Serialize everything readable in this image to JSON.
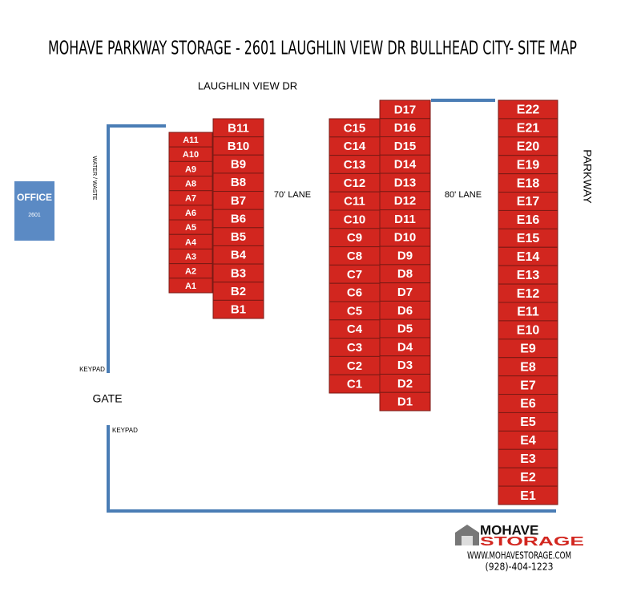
{
  "title": "MOHAVE PARKWAY STORAGE - 2601  LAUGHLIN VIEW DR BULLHEAD CITY- SITE MAP",
  "road": "LAUGHLIN VIEW DR",
  "office": {
    "label": "OFFICE",
    "number": "2601"
  },
  "water_label": "WATER / WASTE",
  "lanes": [
    "70' LANE",
    "80' LANE"
  ],
  "parkway": "PARKWAY",
  "gate": "GATE",
  "keypads": [
    "KEYPAD",
    "KEYPAD"
  ],
  "columns": [
    {
      "units": [
        "A11",
        "A10",
        "A9",
        "A8",
        "A7",
        "A6",
        "A5",
        "A4",
        "A3",
        "A2",
        "A1"
      ]
    },
    {
      "units": [
        "B11",
        "B10",
        "B9",
        "B8",
        "B7",
        "B6",
        "B5",
        "B4",
        "B3",
        "B2",
        "B1"
      ]
    },
    {
      "units": [
        "C15",
        "C14",
        "C13",
        "C12",
        "C11",
        "C10",
        "C9",
        "C8",
        "C7",
        "C6",
        "C5",
        "C4",
        "C3",
        "C2",
        "C1"
      ]
    },
    {
      "units": [
        "D17",
        "D16",
        "D15",
        "D14",
        "D13",
        "D12",
        "D11",
        "D10",
        "D9",
        "D8",
        "D7",
        "D6",
        "D5",
        "D4",
        "D3",
        "D2",
        "D1"
      ]
    },
    {
      "units": [
        "E22",
        "E21",
        "E20",
        "E19",
        "E18",
        "E17",
        "E16",
        "E15",
        "E14",
        "E13",
        "E12",
        "E11",
        "E10",
        "E9",
        "E8",
        "E7",
        "E6",
        "E5",
        "E4",
        "E3",
        "E2",
        "E1"
      ]
    }
  ],
  "logo": {
    "line1": "MOHAVE",
    "line2": "STORAGE"
  },
  "website": "WWW.MOHAVESTORAGE.COM",
  "phone": "(928)-404-1223"
}
